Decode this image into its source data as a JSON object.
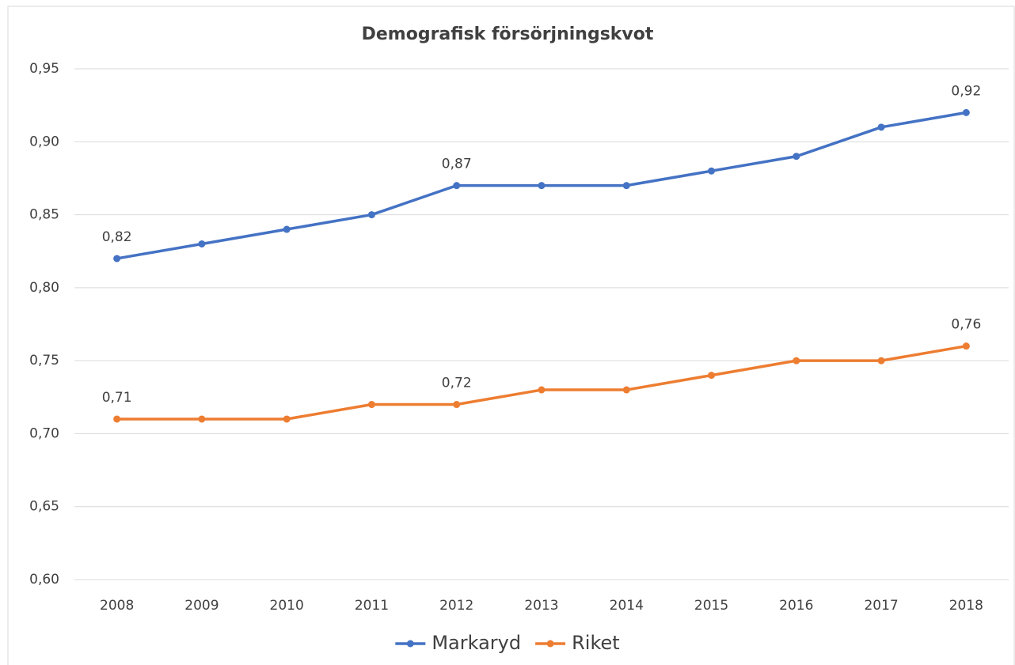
{
  "chart_data": {
    "type": "line",
    "title": "Demografisk försörjningskvot",
    "categories": [
      "2008",
      "2009",
      "2010",
      "2011",
      "2012",
      "2013",
      "2014",
      "2015",
      "2016",
      "2017",
      "2018"
    ],
    "series": [
      {
        "name": "Markaryd",
        "color": "#4472c4",
        "values": [
          0.82,
          0.83,
          0.84,
          0.85,
          0.87,
          0.87,
          0.87,
          0.88,
          0.89,
          0.91,
          0.92
        ],
        "value_labels": [
          "0,82",
          null,
          null,
          null,
          "0,87",
          null,
          null,
          null,
          null,
          null,
          "0,92"
        ]
      },
      {
        "name": "Riket",
        "color": "#ed7d31",
        "values": [
          0.71,
          0.71,
          0.71,
          0.72,
          0.72,
          0.73,
          0.73,
          0.74,
          0.75,
          0.75,
          0.76
        ],
        "value_labels": [
          "0,71",
          null,
          null,
          null,
          "0,72",
          null,
          null,
          null,
          null,
          null,
          "0,76"
        ]
      }
    ],
    "ylim": [
      0.6,
      0.95
    ],
    "yticks": [
      {
        "value": 0.6,
        "label": "0,60"
      },
      {
        "value": 0.65,
        "label": "0,65"
      },
      {
        "value": 0.7,
        "label": "0,70"
      },
      {
        "value": 0.75,
        "label": "0,75"
      },
      {
        "value": 0.8,
        "label": "0,80"
      },
      {
        "value": 0.85,
        "label": "0,85"
      },
      {
        "value": 0.9,
        "label": "0,90"
      },
      {
        "value": 0.95,
        "label": "0,95"
      }
    ],
    "grid": true,
    "legend": "bottom"
  }
}
